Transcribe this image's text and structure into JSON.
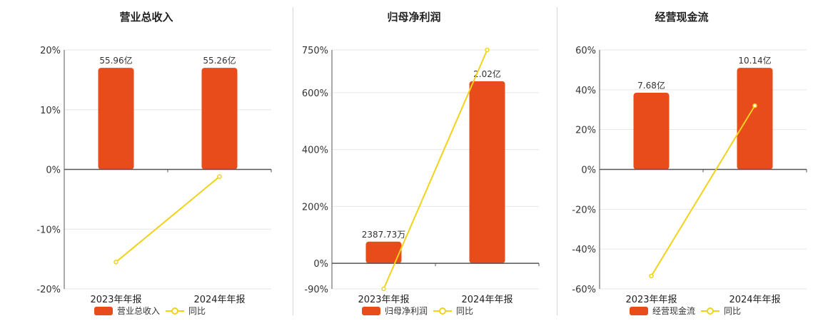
{
  "colors": {
    "bar": "#e84c1a",
    "line": "#f2d21a",
    "axis": "#555555",
    "grid": "#e6e6e6"
  },
  "chart_data": [
    {
      "type": "bar",
      "title": "营业总收入",
      "categories": [
        "2023年年报",
        "2024年年报"
      ],
      "bar_values": [
        55.96,
        55.26
      ],
      "bar_labels": [
        "55.96亿",
        "55.26亿"
      ],
      "series": [
        {
          "name": "营业总收入",
          "type": "bar",
          "values": [
            0.17,
            0.17
          ]
        },
        {
          "name": "同比",
          "type": "line",
          "values": [
            -0.155,
            -0.012
          ]
        }
      ],
      "y_ticks": [
        {
          "v": 0.2,
          "label": "20%"
        },
        {
          "v": 0.1,
          "label": "10%"
        },
        {
          "v": 0,
          "label": "0%"
        },
        {
          "v": -0.1,
          "label": "-10%"
        },
        {
          "v": -0.2,
          "label": "-20%"
        }
      ],
      "ylim": [
        -0.2,
        0.2
      ]
    },
    {
      "type": "bar",
      "title": "归母净利润",
      "categories": [
        "2023年年报",
        "2024年年报"
      ],
      "bar_values": [
        2387.73,
        2.02
      ],
      "bar_labels": [
        "2387.73万",
        "2.02亿"
      ],
      "series": [
        {
          "name": "归母净利润",
          "type": "bar",
          "values": [
            0.76,
            6.4
          ]
        },
        {
          "name": "同比",
          "type": "line",
          "values": [
            -0.9,
            7.5
          ]
        }
      ],
      "y_ticks": [
        {
          "v": 7.5,
          "label": "750%"
        },
        {
          "v": 6,
          "label": "600%"
        },
        {
          "v": 4,
          "label": "400%"
        },
        {
          "v": 2,
          "label": "200%"
        },
        {
          "v": 0,
          "label": "0%"
        },
        {
          "v": -0.9,
          "label": "-90%"
        }
      ],
      "ylim": [
        -0.9,
        7.5
      ]
    },
    {
      "type": "bar",
      "title": "经营现金流",
      "categories": [
        "2023年年报",
        "2024年年报"
      ],
      "bar_values": [
        7.68,
        10.14
      ],
      "bar_labels": [
        "7.68亿",
        "10.14亿"
      ],
      "series": [
        {
          "name": "经营现金流",
          "type": "bar",
          "values": [
            0.385,
            0.51
          ]
        },
        {
          "name": "同比",
          "type": "line",
          "values": [
            -0.535,
            0.32
          ]
        }
      ],
      "y_ticks": [
        {
          "v": 0.6,
          "label": "60%"
        },
        {
          "v": 0.4,
          "label": "40%"
        },
        {
          "v": 0.2,
          "label": "20%"
        },
        {
          "v": 0,
          "label": "0%"
        },
        {
          "v": -0.2,
          "label": "-20%"
        },
        {
          "v": -0.4,
          "label": "-40%"
        },
        {
          "v": -0.6,
          "label": "-60%"
        }
      ],
      "ylim": [
        -0.6,
        0.6
      ]
    }
  ]
}
